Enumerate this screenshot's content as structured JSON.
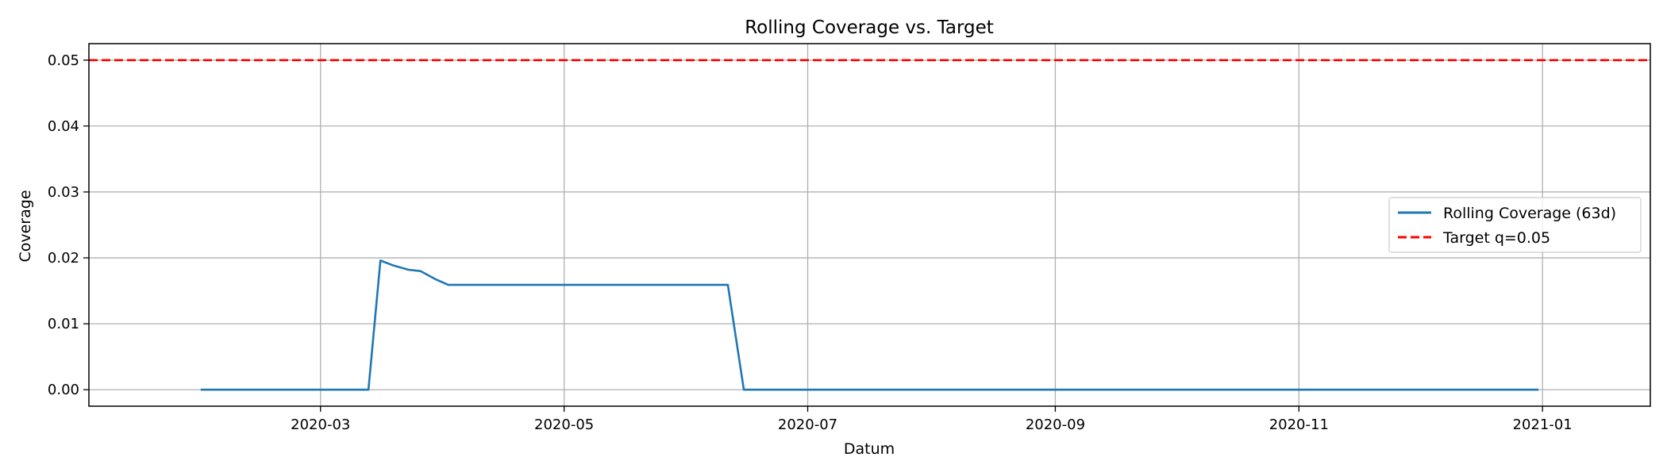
{
  "chart_data": {
    "type": "line",
    "title": "Rolling Coverage vs. Target",
    "xlabel": "Datum",
    "ylabel": "Coverage",
    "xlim": [
      "2020-01-03",
      "2021-01-28"
    ],
    "ylim": [
      -0.0025,
      0.0525
    ],
    "x_ticks": [
      "2020-03-01",
      "2020-05-01",
      "2020-07-01",
      "2020-09-01",
      "2020-11-01",
      "2021-01-01"
    ],
    "x_tick_labels": [
      "2020-03",
      "2020-05",
      "2020-07",
      "2020-09",
      "2020-11",
      "2021-01"
    ],
    "y_ticks": [
      0.0,
      0.01,
      0.02,
      0.03,
      0.04,
      0.05
    ],
    "y_tick_labels": [
      "0.00",
      "0.01",
      "0.02",
      "0.03",
      "0.04",
      "0.05"
    ],
    "grid": true,
    "legend_position": "center-right",
    "series": [
      {
        "name": "Rolling Coverage (63d)",
        "color": "#1f77b4",
        "style": "solid",
        "x": [
          "2020-01-31",
          "2020-03-13",
          "2020-03-16",
          "2020-03-19",
          "2020-03-23",
          "2020-03-26",
          "2020-03-30",
          "2020-04-02",
          "2020-06-11",
          "2020-06-15",
          "2020-12-31"
        ],
        "y": [
          0.0,
          0.0,
          0.0196,
          0.0189,
          0.0182,
          0.018,
          0.0167,
          0.0159,
          0.0159,
          0.0,
          0.0
        ]
      },
      {
        "name": "Target q=0.05",
        "color": "#ff0000",
        "style": "dashed",
        "hline": 0.05
      }
    ]
  }
}
